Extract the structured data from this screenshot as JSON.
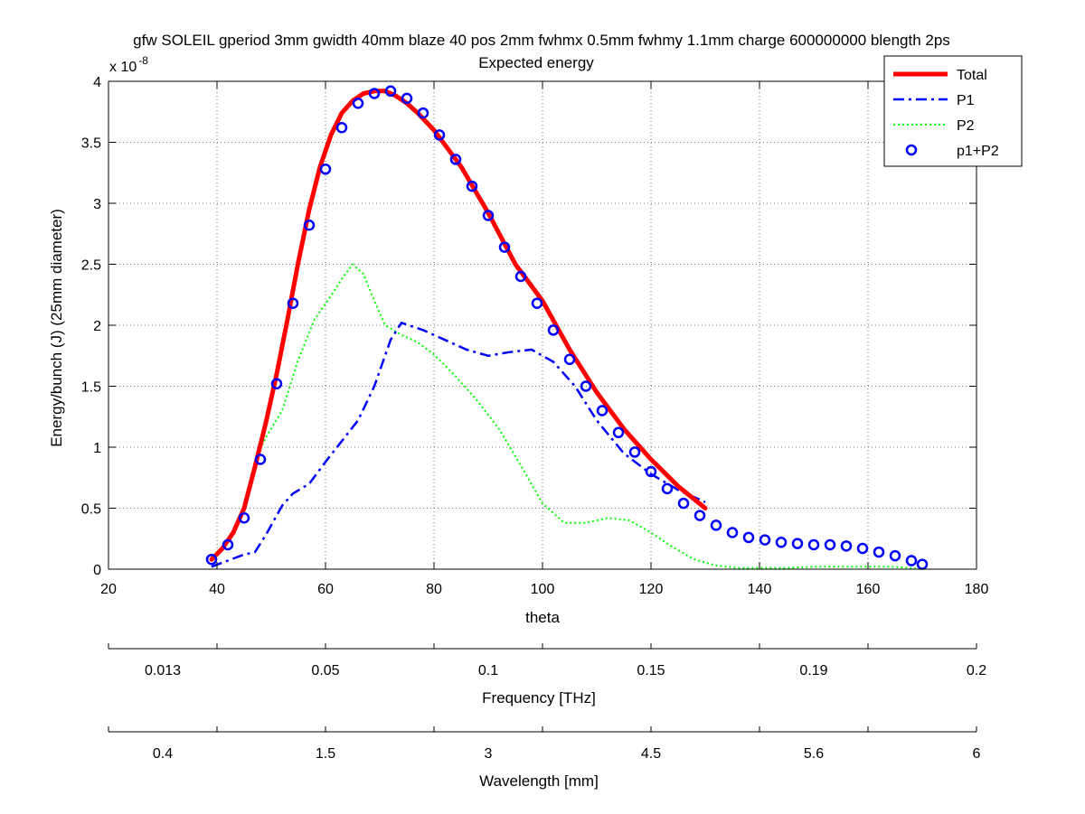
{
  "chart_data": {
    "type": "line",
    "title": "gfw SOLEIL gperiod 3mm gwidth 40mm blaze 40 pos 2mm fwhmx 0.5mm fwhmy 1.1mm charge 600000000 blength 2ps",
    "subtitle": "Expected energy",
    "xlabel": "theta",
    "ylabel": "Energy/bunch (J) (25mm diameter)",
    "y_multiplier": "x 10",
    "y_exponent": "-8",
    "xlim": [
      20,
      180
    ],
    "ylim": [
      0,
      4
    ],
    "grid": true,
    "legend_position": "top-right",
    "x_ticks": [
      "20",
      "40",
      "60",
      "80",
      "100",
      "120",
      "140",
      "160",
      "180"
    ],
    "y_ticks": [
      "0",
      "0.5",
      "1",
      "1.5",
      "2",
      "2.5",
      "3",
      "3.5",
      "4"
    ],
    "secondary_axes": [
      {
        "label": "Frequency [THz]",
        "ticks": [
          "0.013",
          "0.05",
          "0.1",
          "0.15",
          "0.19",
          "0.2"
        ]
      },
      {
        "label": "Wavelength [mm]",
        "ticks": [
          "0.4",
          "1.5",
          "3",
          "4.5",
          "5.6",
          "6"
        ]
      }
    ],
    "series": [
      {
        "name": "Total",
        "style": "solid",
        "color": "#ff0000",
        "x": [
          39,
          41,
          43,
          45,
          47,
          49,
          51,
          53,
          55,
          57,
          59,
          61,
          63,
          65,
          67,
          69,
          71,
          73,
          75,
          77,
          80,
          85,
          90,
          95,
          100,
          105,
          110,
          115,
          120,
          125,
          130
        ],
        "y": [
          0.08,
          0.17,
          0.3,
          0.5,
          0.84,
          1.2,
          1.6,
          2.05,
          2.52,
          2.95,
          3.3,
          3.56,
          3.74,
          3.84,
          3.9,
          3.92,
          3.92,
          3.88,
          3.82,
          3.74,
          3.6,
          3.3,
          2.92,
          2.5,
          2.2,
          1.8,
          1.45,
          1.15,
          0.9,
          0.68,
          0.5
        ]
      },
      {
        "name": "P1",
        "style": "dashdot",
        "color": "#0000ff",
        "x": [
          39,
          42,
          45,
          47,
          49,
          52,
          54,
          57,
          60,
          63,
          66,
          69,
          72,
          74,
          78,
          82,
          86,
          90,
          94,
          98,
          102,
          106,
          110,
          115,
          120,
          125,
          130
        ],
        "y": [
          0.02,
          0.07,
          0.12,
          0.14,
          0.28,
          0.52,
          0.62,
          0.7,
          0.88,
          1.05,
          1.22,
          1.5,
          1.88,
          2.02,
          1.96,
          1.88,
          1.8,
          1.75,
          1.78,
          1.8,
          1.7,
          1.5,
          1.22,
          0.95,
          0.78,
          0.65,
          0.55
        ]
      },
      {
        "name": "P2",
        "style": "dotted",
        "color": "#00ff00",
        "x": [
          47,
          49,
          52,
          55,
          58,
          61,
          63,
          65,
          67,
          69,
          71,
          74,
          77,
          80,
          84,
          88,
          92,
          96,
          100,
          104,
          108,
          112,
          116,
          120,
          124,
          128,
          132,
          136,
          140,
          145,
          150,
          155,
          160,
          165,
          170
        ],
        "y": [
          0.88,
          1.08,
          1.3,
          1.72,
          2.05,
          2.24,
          2.38,
          2.5,
          2.42,
          2.2,
          2.0,
          1.92,
          1.86,
          1.76,
          1.58,
          1.38,
          1.15,
          0.85,
          0.54,
          0.38,
          0.38,
          0.42,
          0.4,
          0.3,
          0.18,
          0.08,
          0.03,
          0.01,
          0.01,
          0.01,
          0.02,
          0.02,
          0.02,
          0.02,
          0.0
        ]
      },
      {
        "name": "p1+P2",
        "style": "markers",
        "color": "#0000ff",
        "x": [
          39,
          42,
          45,
          48,
          51,
          54,
          57,
          60,
          63,
          66,
          69,
          72,
          75,
          78,
          81,
          84,
          87,
          90,
          93,
          96,
          99,
          102,
          105,
          108,
          111,
          114,
          117,
          120,
          123,
          126,
          129,
          132,
          135,
          138,
          141,
          144,
          147,
          150,
          153,
          156,
          159,
          162,
          165,
          168,
          170
        ],
        "y": [
          0.08,
          0.2,
          0.42,
          0.9,
          1.52,
          2.18,
          2.82,
          3.28,
          3.62,
          3.82,
          3.9,
          3.92,
          3.86,
          3.74,
          3.56,
          3.36,
          3.14,
          2.9,
          2.64,
          2.4,
          2.18,
          1.96,
          1.72,
          1.5,
          1.3,
          1.12,
          0.96,
          0.8,
          0.66,
          0.54,
          0.44,
          0.36,
          0.3,
          0.26,
          0.24,
          0.22,
          0.21,
          0.2,
          0.2,
          0.19,
          0.17,
          0.14,
          0.11,
          0.07,
          0.04
        ]
      }
    ]
  }
}
